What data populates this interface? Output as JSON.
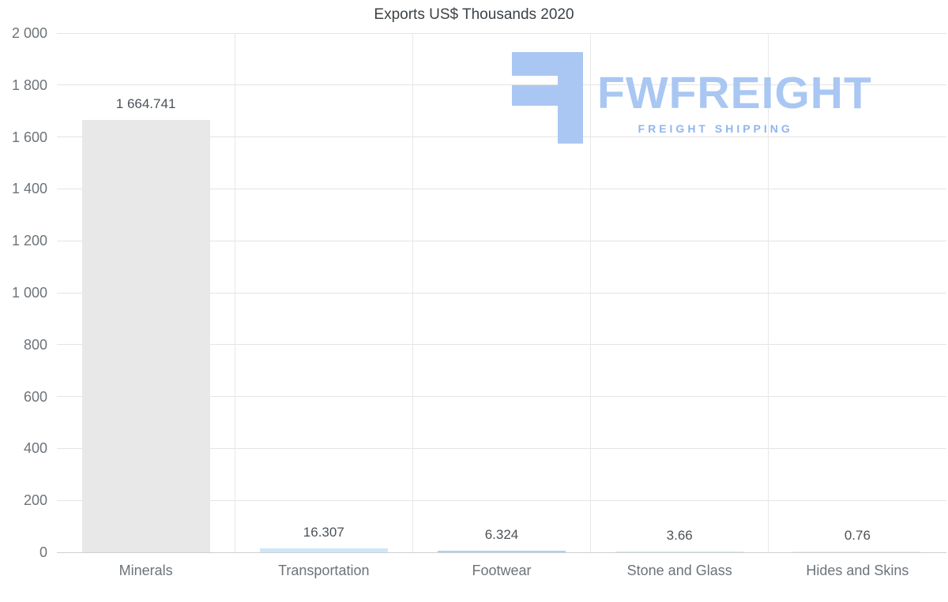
{
  "title": "Exports US$ Thousands 2020",
  "chart_data": {
    "type": "bar",
    "title": "Exports US$ Thousands 2020",
    "categories": [
      "Minerals",
      "Transportation",
      "Footwear",
      "Stone and Glass",
      "Hides and Skins"
    ],
    "values": [
      1664.741,
      16.307,
      6.324,
      3.66,
      0.76
    ],
    "value_labels": [
      "1 664.741",
      "16.307",
      "6.324",
      "3.66",
      "0.76"
    ],
    "bar_colors": [
      "#e8e8e8",
      "#cde7fa",
      "#a9d3ef",
      "#c9eef3",
      "#ddeefb"
    ],
    "xlabel": "",
    "ylabel": "",
    "ylim": [
      0,
      2000
    ],
    "ytick_step": 200,
    "ytick_labels": [
      "0",
      "200",
      "400",
      "600",
      "800",
      "1 000",
      "1 200",
      "1 400",
      "1 600",
      "1 800",
      "2 000"
    ],
    "grid": true,
    "legend": false
  },
  "logo": {
    "wordmark": "FWFREIGHT",
    "tagline": "FREIGHT SHIPPING",
    "color": "#a9c7f2",
    "tagline_color": "#8fb6ec"
  },
  "colors": {
    "title_text": "#3c4247",
    "axis_text": "#6d7378",
    "value_text": "#4d5257",
    "gridline": "#e4e4e4"
  }
}
